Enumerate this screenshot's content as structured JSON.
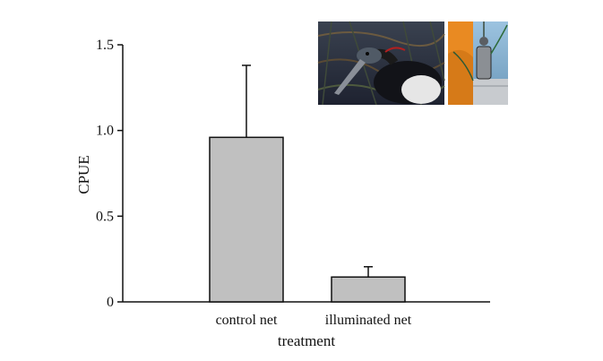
{
  "chart_data": {
    "type": "bar",
    "title": "",
    "xlabel": "treatment",
    "ylabel": "CPUE",
    "categories": [
      "control net",
      "illuminated net"
    ],
    "values": [
      0.96,
      0.145
    ],
    "error_upper": [
      1.38,
      0.205
    ],
    "ylim": [
      0,
      1.5
    ],
    "yticks": [
      0,
      0.5,
      1.0,
      1.5
    ],
    "ytick_labels": [
      "0",
      "0.5",
      "1.0",
      "1.5"
    ],
    "grid": false,
    "bar_color": "#c0c0c0",
    "bar_edge_color": "#111111",
    "inset_photos": [
      {
        "name": "bird-in-net-photo",
        "subject": "seabird",
        "palette": [
          "#2a2f3a",
          "#5b4a3a",
          "#d8d8d8"
        ]
      },
      {
        "name": "net-light-photo",
        "subject": "net light",
        "palette": [
          "#e8902a",
          "#6aa0c8",
          "#a0a0a0"
        ]
      }
    ]
  }
}
